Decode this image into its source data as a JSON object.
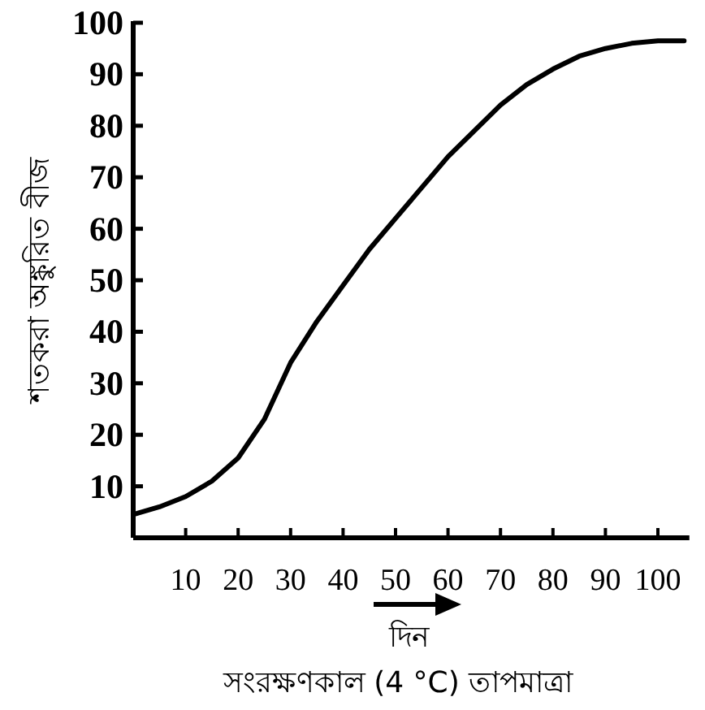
{
  "chart_data": {
    "type": "line",
    "ylabel": "শতকরা অঙ্কুরিত বীজ",
    "xlabel": "দিন",
    "annotations": [
      "সংরক্ষণকাল (4 °C) তাপমাত্রা"
    ],
    "x": [
      0,
      5,
      10,
      15,
      20,
      25,
      30,
      35,
      40,
      45,
      50,
      55,
      60,
      65,
      70,
      75,
      80,
      85,
      90,
      95,
      100,
      105
    ],
    "series": [
      {
        "color": "#000000",
        "values": [
          4.5,
          6,
          8,
          11,
          15.5,
          23,
          34,
          42,
          49,
          56,
          62,
          68,
          74,
          79,
          84,
          88,
          91,
          93.5,
          95,
          96,
          96.5,
          96.5
        ]
      }
    ],
    "xlim": [
      0,
      106
    ],
    "ylim": [
      0,
      100
    ],
    "xticks": [
      10,
      20,
      30,
      40,
      50,
      60,
      70,
      80,
      90,
      100
    ],
    "yticks": [
      10,
      20,
      30,
      40,
      50,
      60,
      70,
      80,
      90,
      100
    ],
    "line_style": "solid",
    "marker": "none"
  }
}
